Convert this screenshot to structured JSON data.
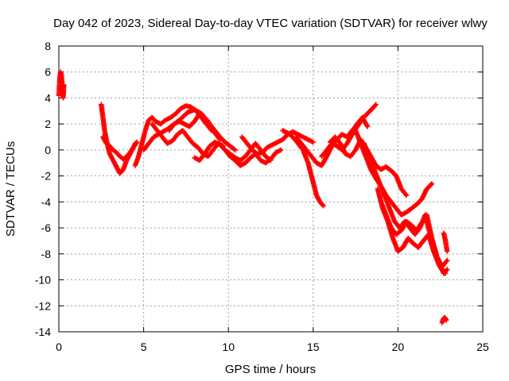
{
  "chart_data": {
    "type": "scatter",
    "title": "Day 042 of 2023, Sidereal Day-to-day VTEC variation (SDTVAR) for receiver wlwy",
    "xlabel": "GPS time / hours",
    "ylabel": "SDTVAR / TECUs",
    "xlim": [
      0,
      25
    ],
    "ylim": [
      -14,
      8
    ],
    "xticks": [
      "0",
      "5",
      "10",
      "15",
      "20",
      "25"
    ],
    "yticks": [
      "8",
      "6",
      "4",
      "2",
      "0",
      "-2",
      "-4",
      "-6",
      "-8",
      "-10",
      "-12",
      "-14"
    ],
    "grid": true,
    "marker": "plus",
    "color": "#ff0000",
    "series": [
      {
        "name": "s1",
        "x": [
          0.0,
          0.05,
          0.1,
          0.15,
          0.2,
          0.25,
          0.3
        ],
        "y": [
          4.2,
          5.5,
          6.0,
          5.8,
          4.8,
          4.0,
          5.0
        ]
      },
      {
        "name": "s2",
        "x": [
          2.5,
          2.6,
          2.7,
          2.8,
          2.9,
          3.0,
          3.2,
          3.4,
          3.6,
          3.8,
          4.0,
          4.2,
          4.4,
          4.5
        ],
        "y": [
          3.5,
          2.5,
          1.5,
          0.8,
          0.2,
          -0.3,
          -0.8,
          -1.3,
          -1.8,
          -1.5,
          -0.8,
          -0.3,
          0.2,
          0.5
        ]
      },
      {
        "name": "s3",
        "x": [
          2.6,
          2.8,
          3.0,
          3.2,
          3.4,
          3.6,
          3.8,
          4.0,
          4.2,
          4.4,
          4.6
        ],
        "y": [
          1.0,
          0.5,
          0.3,
          0.0,
          -0.2,
          -0.5,
          -0.7,
          -0.5,
          -0.2,
          0.2,
          0.6
        ]
      },
      {
        "name": "s4",
        "x": [
          4.5,
          4.7,
          4.9,
          5.1,
          5.3,
          5.5,
          5.7,
          6.0,
          6.3,
          6.6,
          6.9,
          7.2,
          7.5,
          7.8,
          8.1,
          8.4,
          8.7,
          9.0
        ],
        "y": [
          -1.2,
          -0.5,
          0.5,
          1.5,
          2.3,
          2.5,
          2.2,
          2.0,
          2.3,
          2.5,
          2.8,
          3.2,
          3.4,
          3.3,
          3.0,
          2.5,
          2.0,
          1.5
        ]
      },
      {
        "name": "s5",
        "x": [
          5.0,
          5.3,
          5.6,
          6.0,
          6.4,
          6.8,
          7.2,
          7.6,
          8.0,
          8.4,
          8.8,
          9.2,
          9.5
        ],
        "y": [
          0.0,
          0.5,
          1.0,
          1.3,
          1.6,
          2.0,
          2.4,
          2.9,
          3.1,
          2.8,
          2.2,
          1.3,
          0.8
        ]
      },
      {
        "name": "s6",
        "x": [
          5.5,
          5.8,
          6.1,
          6.4,
          6.7,
          7.0,
          7.3,
          7.6,
          7.9,
          8.2,
          8.5,
          8.8,
          9.1,
          9.4,
          9.7
        ],
        "y": [
          2.0,
          1.5,
          1.0,
          0.5,
          0.7,
          1.2,
          1.5,
          1.0,
          0.5,
          0.2,
          -0.3,
          -0.5,
          0.0,
          0.5,
          0.3
        ]
      },
      {
        "name": "s7",
        "x": [
          6.5,
          6.8,
          7.1,
          7.4,
          7.7,
          8.0,
          8.3,
          8.6,
          8.9,
          9.2,
          9.5,
          9.8,
          10.1,
          10.4
        ],
        "y": [
          1.5,
          2.0,
          2.2,
          2.0,
          1.8,
          2.2,
          2.8,
          2.5,
          2.0,
          1.5,
          1.0,
          0.6,
          0.3,
          0.0
        ]
      },
      {
        "name": "s8",
        "x": [
          8.0,
          8.3,
          8.6,
          8.9,
          9.2,
          9.5,
          9.8,
          10.1,
          10.4,
          10.7,
          11.0,
          11.3,
          11.6,
          11.9,
          12.2,
          12.5
        ],
        "y": [
          -0.6,
          -0.8,
          -0.3,
          0.3,
          0.6,
          0.4,
          0.0,
          -0.3,
          -0.6,
          -0.8,
          -0.5,
          0.0,
          0.5,
          0.0,
          -0.5,
          -0.8
        ]
      },
      {
        "name": "s9",
        "x": [
          9.8,
          10.1,
          10.4,
          10.7,
          11.0,
          11.3,
          11.6,
          11.9,
          12.2,
          12.5,
          12.8,
          13.1
        ],
        "y": [
          0.0,
          -0.5,
          -0.8,
          -1.2,
          -1.0,
          -0.6,
          -0.3,
          -0.8,
          -1.0,
          -0.7,
          -0.2,
          0.0
        ]
      },
      {
        "name": "s10",
        "x": [
          10.8,
          11.1,
          11.4,
          11.7,
          12.0,
          12.3,
          12.6,
          12.9,
          13.2,
          13.5,
          13.8,
          14.1,
          14.4,
          14.7,
          15.0
        ],
        "y": [
          1.0,
          0.5,
          0.0,
          -0.3,
          -0.2,
          0.2,
          0.4,
          0.6,
          0.8,
          1.2,
          1.4,
          1.2,
          1.0,
          0.8,
          0.6
        ]
      },
      {
        "name": "s11",
        "x": [
          13.2,
          13.5,
          13.8,
          14.1,
          14.4,
          14.7,
          15.0,
          15.2,
          15.4,
          15.6
        ],
        "y": [
          1.5,
          1.3,
          1.0,
          0.5,
          0.0,
          -1.0,
          -2.5,
          -3.5,
          -4.0,
          -4.3
        ]
      },
      {
        "name": "s12",
        "x": [
          14.0,
          14.3,
          14.6,
          14.9,
          15.2,
          15.5,
          15.8,
          16.1,
          16.4,
          16.7,
          17.0,
          17.3,
          17.6,
          17.9,
          18.2
        ],
        "y": [
          1.0,
          0.5,
          0.0,
          -0.5,
          -1.0,
          -1.2,
          -0.5,
          0.3,
          0.8,
          1.2,
          1.0,
          1.5,
          2.0,
          2.5,
          1.8
        ]
      },
      {
        "name": "s13",
        "x": [
          15.5,
          15.8,
          16.1,
          16.4,
          16.7,
          17.0,
          17.3,
          17.6,
          17.9,
          18.2,
          18.5,
          18.7
        ],
        "y": [
          -0.5,
          0.0,
          0.5,
          0.3,
          0.0,
          0.5,
          1.2,
          1.8,
          2.4,
          2.8,
          3.2,
          3.5
        ]
      },
      {
        "name": "s14",
        "x": [
          16.0,
          16.3,
          16.6,
          16.9,
          17.2,
          17.5,
          17.8,
          18.1,
          18.4,
          18.7,
          19.0,
          19.3,
          19.6,
          19.9,
          20.2,
          20.5
        ],
        "y": [
          0.6,
          1.0,
          0.5,
          -0.3,
          -0.5,
          0.0,
          0.8,
          0.2,
          -0.5,
          -1.2,
          -1.5,
          -1.3,
          -1.6,
          -2.0,
          -3.0,
          -3.5
        ]
      },
      {
        "name": "s15",
        "x": [
          17.5,
          17.8,
          18.1,
          18.4,
          18.7,
          19.0,
          19.3,
          19.6,
          19.9,
          20.2,
          20.5,
          20.8,
          21.1,
          21.4,
          21.7,
          22.0
        ],
        "y": [
          1.5,
          0.5,
          -0.5,
          -1.5,
          -2.2,
          -2.8,
          -3.5,
          -4.0,
          -4.5,
          -5.0,
          -4.8,
          -4.5,
          -4.2,
          -3.8,
          -3.0,
          -2.6
        ]
      },
      {
        "name": "s16",
        "x": [
          18.0,
          18.3,
          18.6,
          18.9,
          19.2,
          19.5,
          19.8,
          20.1,
          20.4,
          20.7,
          21.0,
          21.3,
          21.6,
          21.9,
          22.2,
          22.5,
          22.8
        ],
        "y": [
          0.5,
          -0.5,
          -1.5,
          -2.5,
          -3.5,
          -4.5,
          -5.5,
          -6.0,
          -5.5,
          -6.0,
          -6.5,
          -6.0,
          -5.0,
          -6.5,
          -8.0,
          -9.0,
          -9.5
        ]
      },
      {
        "name": "s17",
        "x": [
          18.8,
          19.1,
          19.4,
          19.7,
          20.0,
          20.3,
          20.6,
          20.9,
          21.2,
          21.5,
          21.8,
          22.1,
          22.4,
          22.7,
          22.9
        ],
        "y": [
          -3.0,
          -4.5,
          -5.5,
          -6.8,
          -7.8,
          -7.5,
          -6.8,
          -7.2,
          -7.5,
          -7.0,
          -6.5,
          -7.8,
          -8.8,
          -9.5,
          -9.2
        ]
      },
      {
        "name": "s18",
        "x": [
          19.0,
          19.3,
          19.6,
          19.9,
          20.2,
          20.5,
          20.8,
          21.1,
          21.4,
          21.7,
          22.0,
          22.3,
          22.6,
          22.9
        ],
        "y": [
          -4.0,
          -5.0,
          -6.0,
          -6.5,
          -6.2,
          -5.5,
          -5.8,
          -6.2,
          -5.6,
          -5.0,
          -6.8,
          -8.2,
          -9.0,
          -8.5
        ]
      },
      {
        "name": "s19",
        "x": [
          22.7,
          22.75,
          22.8,
          22.85,
          22.9
        ],
        "y": [
          -6.4,
          -6.7,
          -7.0,
          -7.4,
          -7.8
        ]
      },
      {
        "name": "s20",
        "x": [
          22.6,
          22.65,
          22.7,
          22.75,
          22.8,
          22.85
        ],
        "y": [
          -13.3,
          -13.1,
          -13.0,
          -12.9,
          -13.0,
          -13.1
        ]
      }
    ]
  }
}
